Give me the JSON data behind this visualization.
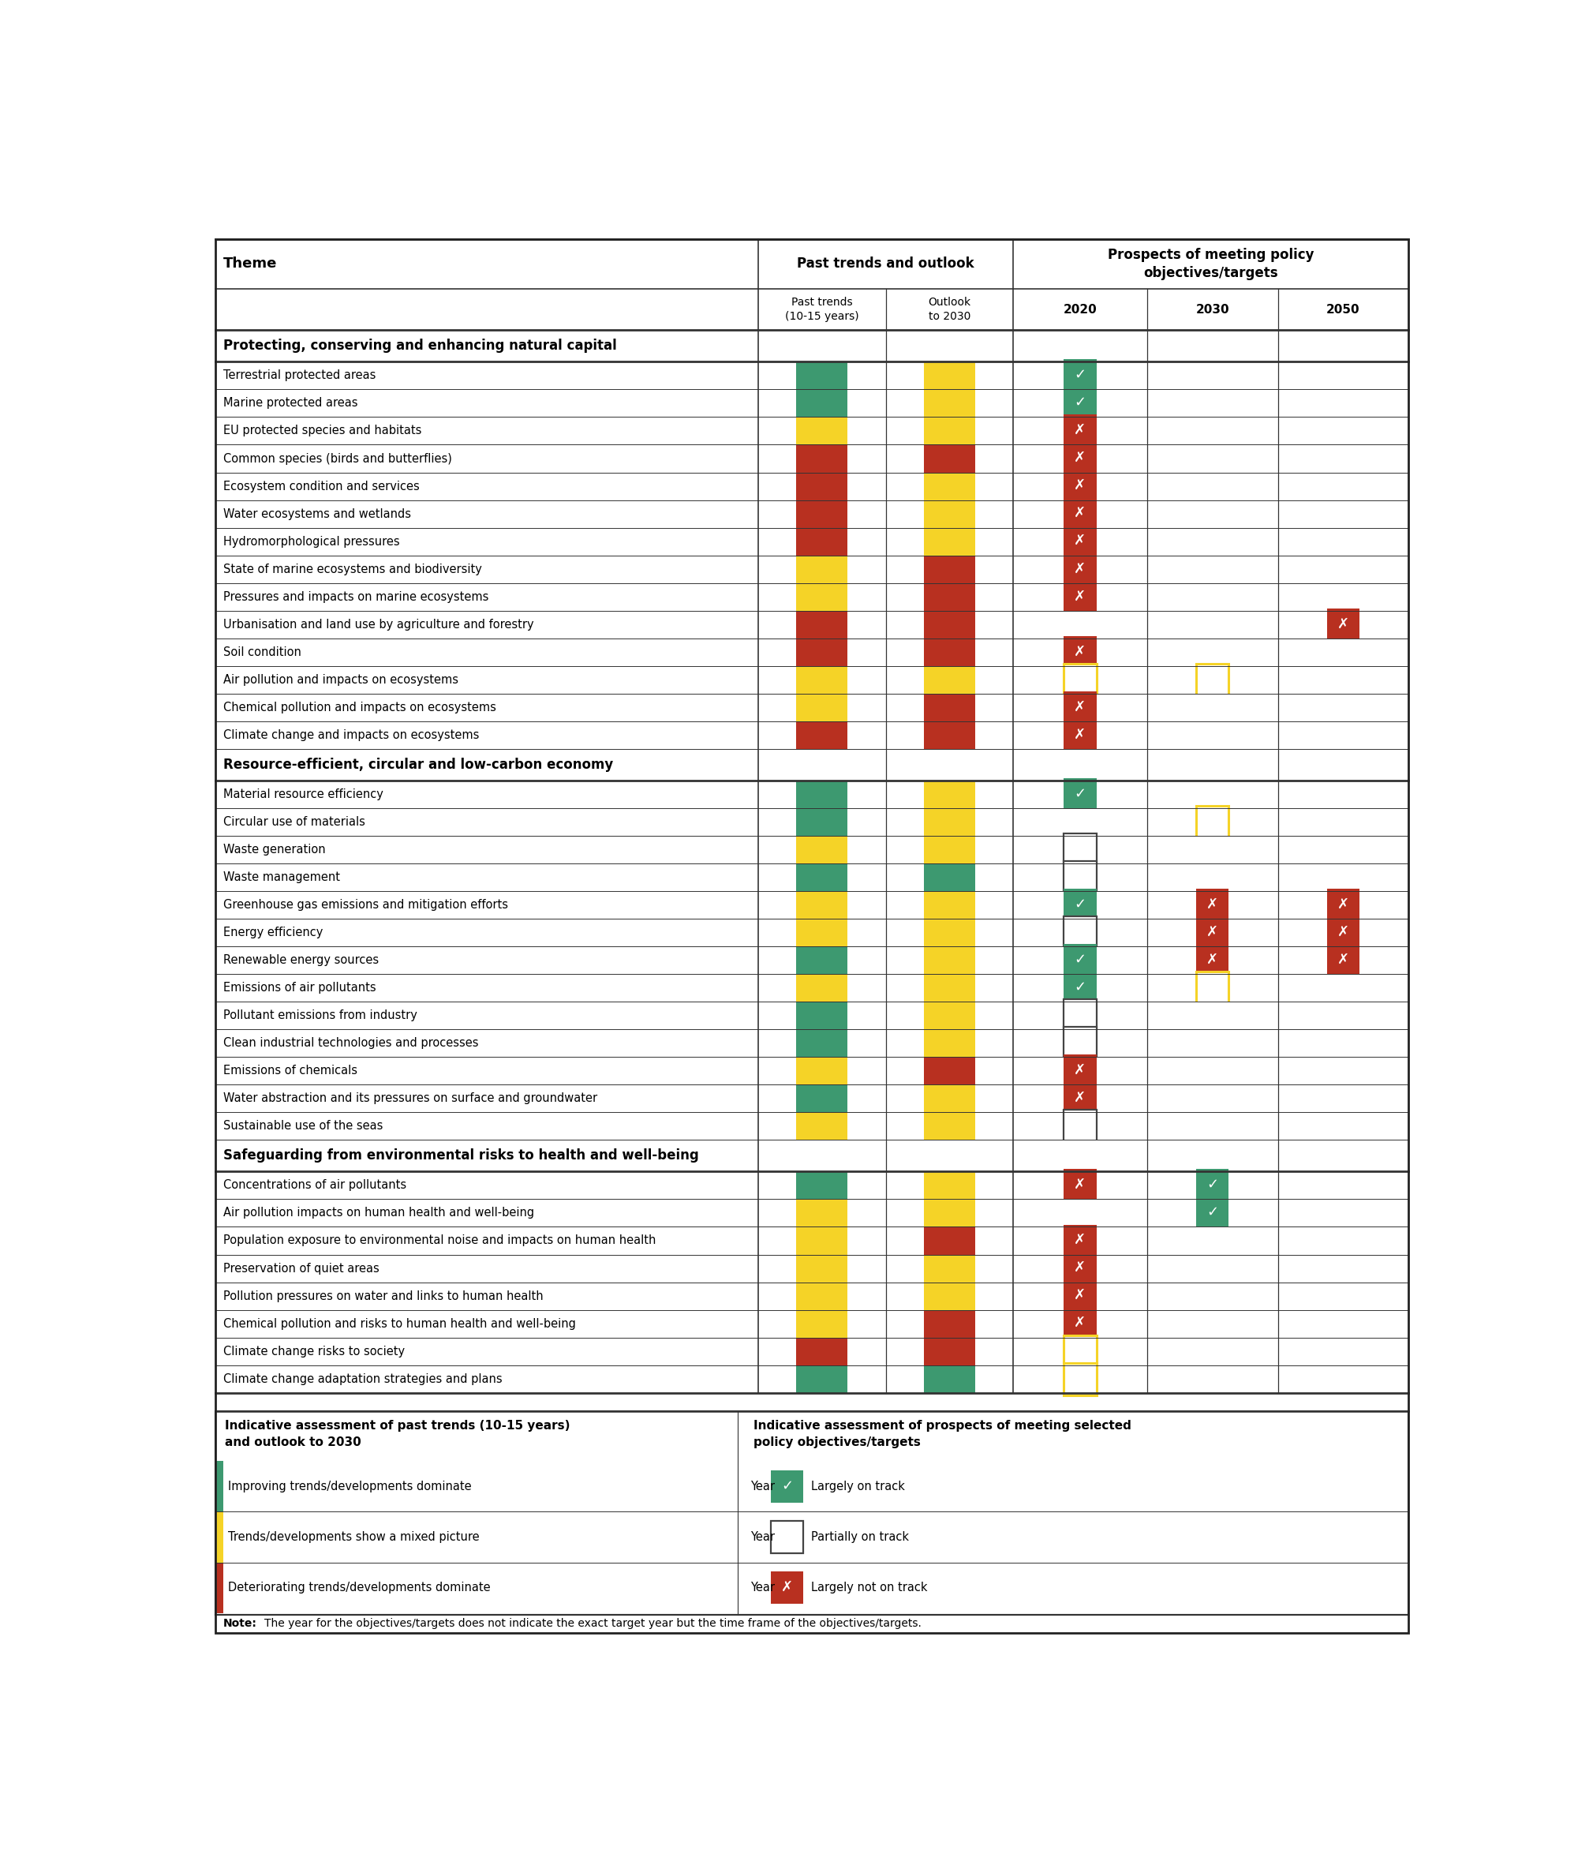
{
  "sections": [
    {
      "title": "Protecting, conserving and enhancing natural capital",
      "rows": [
        {
          "label": "Terrestrial protected areas",
          "past": "green",
          "outlook": "yellow",
          "y2020": "check_green",
          "y2030": null,
          "y2050": null
        },
        {
          "label": "Marine protected areas",
          "past": "green",
          "outlook": "yellow",
          "y2020": "check_green",
          "y2030": null,
          "y2050": null
        },
        {
          "label": "EU protected species and habitats",
          "past": "yellow",
          "outlook": "yellow",
          "y2020": "cross_red",
          "y2030": null,
          "y2050": null
        },
        {
          "label": "Common species (birds and butterflies)",
          "past": "red",
          "outlook": "red",
          "y2020": "cross_red",
          "y2030": null,
          "y2050": null
        },
        {
          "label": "Ecosystem condition and services",
          "past": "red",
          "outlook": "yellow",
          "y2020": "cross_red",
          "y2030": null,
          "y2050": null
        },
        {
          "label": "Water ecosystems and wetlands",
          "past": "red",
          "outlook": "yellow",
          "y2020": "cross_red",
          "y2030": null,
          "y2050": null
        },
        {
          "label": "Hydromorphological pressures",
          "past": "red",
          "outlook": "yellow",
          "y2020": "cross_red",
          "y2030": null,
          "y2050": null
        },
        {
          "label": "State of marine ecosystems and biodiversity",
          "past": "yellow",
          "outlook": "red",
          "y2020": "cross_red",
          "y2030": null,
          "y2050": null
        },
        {
          "label": "Pressures and impacts on marine ecosystems",
          "past": "yellow",
          "outlook": "red",
          "y2020": "cross_red",
          "y2030": null,
          "y2050": null
        },
        {
          "label": "Urbanisation and land use by agriculture and forestry",
          "past": "red",
          "outlook": "red",
          "y2020": null,
          "y2030": null,
          "y2050": "cross_red"
        },
        {
          "label": "Soil condition",
          "past": "red",
          "outlook": "red",
          "y2020": "cross_red",
          "y2030": null,
          "y2050": null
        },
        {
          "label": "Air pollution and impacts on ecosystems",
          "past": "yellow",
          "outlook": "yellow",
          "y2020": "empty_yellow",
          "y2030": "empty_yellow",
          "y2050": null
        },
        {
          "label": "Chemical pollution and impacts on ecosystems",
          "past": "yellow",
          "outlook": "red",
          "y2020": "cross_red",
          "y2030": null,
          "y2050": null
        },
        {
          "label": "Climate change and impacts on ecosystems",
          "past": "red",
          "outlook": "red",
          "y2020": "cross_red",
          "y2030": null,
          "y2050": null
        }
      ]
    },
    {
      "title": "Resource-efficient, circular and low-carbon economy",
      "rows": [
        {
          "label": "Material resource efficiency",
          "past": "green",
          "outlook": "yellow",
          "y2020": "check_green",
          "y2030": null,
          "y2050": null
        },
        {
          "label": "Circular use of materials",
          "past": "green",
          "outlook": "yellow",
          "y2020": null,
          "y2030": "empty_yellow",
          "y2050": null
        },
        {
          "label": "Waste generation",
          "past": "yellow",
          "outlook": "yellow",
          "y2020": "empty_white",
          "y2030": null,
          "y2050": null
        },
        {
          "label": "Waste management",
          "past": "green",
          "outlook": "green",
          "y2020": "empty_white",
          "y2030": null,
          "y2050": null
        },
        {
          "label": "Greenhouse gas emissions and mitigation efforts",
          "past": "yellow",
          "outlook": "yellow",
          "y2020": "check_green",
          "y2030": "cross_red",
          "y2050": "cross_red"
        },
        {
          "label": "Energy efficiency",
          "past": "yellow",
          "outlook": "yellow",
          "y2020": "empty_white",
          "y2030": "cross_red",
          "y2050": "cross_red"
        },
        {
          "label": "Renewable energy sources",
          "past": "green",
          "outlook": "yellow",
          "y2020": "check_green",
          "y2030": "cross_red",
          "y2050": "cross_red"
        },
        {
          "label": "Emissions of air pollutants",
          "past": "yellow",
          "outlook": "yellow",
          "y2020": "check_green",
          "y2030": "empty_yellow",
          "y2050": null
        },
        {
          "label": "Pollutant emissions from industry",
          "past": "green",
          "outlook": "yellow",
          "y2020": "empty_white",
          "y2030": null,
          "y2050": null
        },
        {
          "label": "Clean industrial technologies and processes",
          "past": "green",
          "outlook": "yellow",
          "y2020": "empty_white",
          "y2030": null,
          "y2050": null
        },
        {
          "label": "Emissions of chemicals",
          "past": "yellow",
          "outlook": "red",
          "y2020": "cross_red",
          "y2030": null,
          "y2050": null
        },
        {
          "label": "Water abstraction and its pressures on surface and groundwater",
          "past": "green",
          "outlook": "yellow",
          "y2020": "cross_red",
          "y2030": null,
          "y2050": null
        },
        {
          "label": "Sustainable use of the seas",
          "past": "yellow",
          "outlook": "yellow",
          "y2020": "empty_white",
          "y2030": null,
          "y2050": null
        }
      ]
    },
    {
      "title": "Safeguarding from environmental risks to health and well-being",
      "rows": [
        {
          "label": "Concentrations of air pollutants",
          "past": "green",
          "outlook": "yellow",
          "y2020": "cross_red",
          "y2030": "check_green",
          "y2050": null
        },
        {
          "label": "Air pollution impacts on human health and well-being",
          "past": "yellow",
          "outlook": "yellow",
          "y2020": null,
          "y2030": "check_green",
          "y2050": null
        },
        {
          "label": "Population exposure to environmental noise and impacts on human health",
          "past": "yellow",
          "outlook": "red",
          "y2020": "cross_red",
          "y2030": null,
          "y2050": null
        },
        {
          "label": "Preservation of quiet areas",
          "past": "yellow",
          "outlook": "yellow",
          "y2020": "cross_red",
          "y2030": null,
          "y2050": null
        },
        {
          "label": "Pollution pressures on water and links to human health",
          "past": "yellow",
          "outlook": "yellow",
          "y2020": "cross_red",
          "y2030": null,
          "y2050": null
        },
        {
          "label": "Chemical pollution and risks to human health and well-being",
          "past": "yellow",
          "outlook": "red",
          "y2020": "cross_red",
          "y2030": null,
          "y2050": null
        },
        {
          "label": "Climate change risks to society",
          "past": "red",
          "outlook": "red",
          "y2020": "empty_yellow",
          "y2030": null,
          "y2050": null
        },
        {
          "label": "Climate change adaptation strategies and plans",
          "past": "green",
          "outlook": "green",
          "y2020": "empty_yellow",
          "y2030": null,
          "y2050": null
        }
      ]
    }
  ],
  "colors": {
    "green": "#3d9970",
    "yellow": "#f5d327",
    "red": "#b83020",
    "white": "#ffffff",
    "border": "#333333",
    "light_border": "#999999"
  },
  "note": "The year for the objectives/targets does not indicate the exact target year but the time frame of the objectives/targets."
}
